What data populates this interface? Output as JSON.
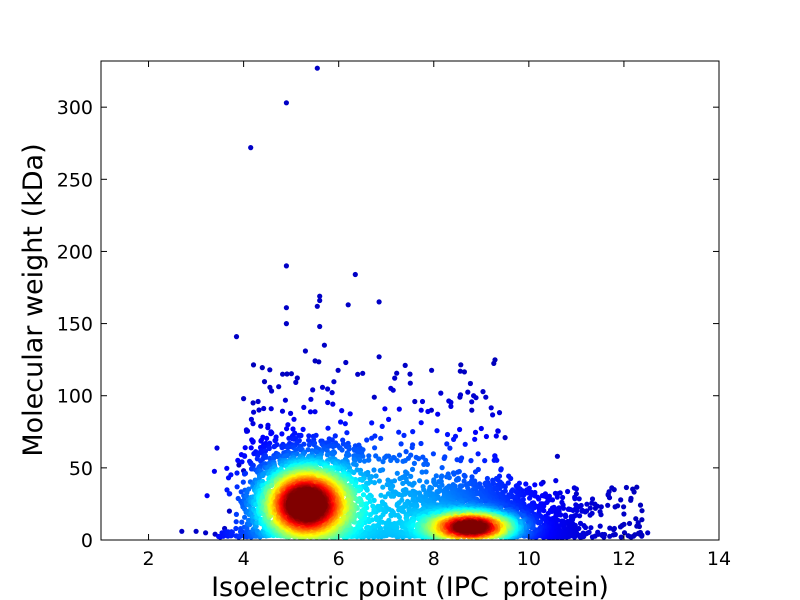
{
  "chart_data": {
    "type": "scatter",
    "title": "",
    "xlabel": "Isoelectric point (IPC_protein)",
    "ylabel": "Molecular weight (kDa)",
    "xlim": [
      1,
      14
    ],
    "ylim": [
      0,
      332
    ],
    "xticks": [
      2,
      4,
      6,
      8,
      10,
      12,
      14
    ],
    "yticks": [
      0,
      50,
      100,
      150,
      200,
      250,
      300
    ],
    "grid": false,
    "legend": "none",
    "colormap": "jet (point density: blue = low, red = high)",
    "density_clusters": [
      {
        "x_center": 5.3,
        "y_center": 25,
        "peak_color": "#cc0000"
      },
      {
        "x_center": 8.8,
        "y_center": 9,
        "peak_color": "#cc0000"
      }
    ],
    "outliers": [
      [
        5.55,
        327
      ],
      [
        4.9,
        303
      ],
      [
        4.15,
        272
      ],
      [
        4.9,
        190
      ],
      [
        6.35,
        184
      ],
      [
        5.6,
        169
      ],
      [
        6.85,
        165
      ],
      [
        5.6,
        166
      ],
      [
        6.2,
        163
      ],
      [
        5.55,
        162
      ],
      [
        4.9,
        161
      ],
      [
        4.9,
        150
      ],
      [
        5.6,
        148
      ],
      [
        3.85,
        141
      ],
      [
        6.85,
        127
      ],
      [
        5.7,
        135
      ],
      [
        5.3,
        131
      ],
      [
        7.4,
        121
      ],
      [
        7.5,
        115
      ],
      [
        6.15,
        123
      ],
      [
        4.55,
        118
      ],
      [
        4.0,
        98
      ],
      [
        4.2,
        95
      ],
      [
        6.75,
        99
      ],
      [
        7.6,
        96
      ],
      [
        8.55,
        99
      ],
      [
        8.8,
        90
      ],
      [
        7.95,
        90
      ],
      [
        10.6,
        58
      ],
      [
        11.0,
        32
      ],
      [
        11.4,
        22
      ],
      [
        12.0,
        18
      ],
      [
        12.3,
        12
      ],
      [
        12.5,
        5
      ],
      [
        11.8,
        8
      ],
      [
        2.7,
        6
      ],
      [
        3.0,
        6
      ],
      [
        3.2,
        5
      ],
      [
        3.4,
        4
      ],
      [
        3.6,
        8
      ],
      [
        3.9,
        52
      ],
      [
        4.0,
        48
      ],
      [
        3.7,
        20
      ],
      [
        10.3,
        40
      ],
      [
        9.5,
        71
      ]
    ]
  }
}
